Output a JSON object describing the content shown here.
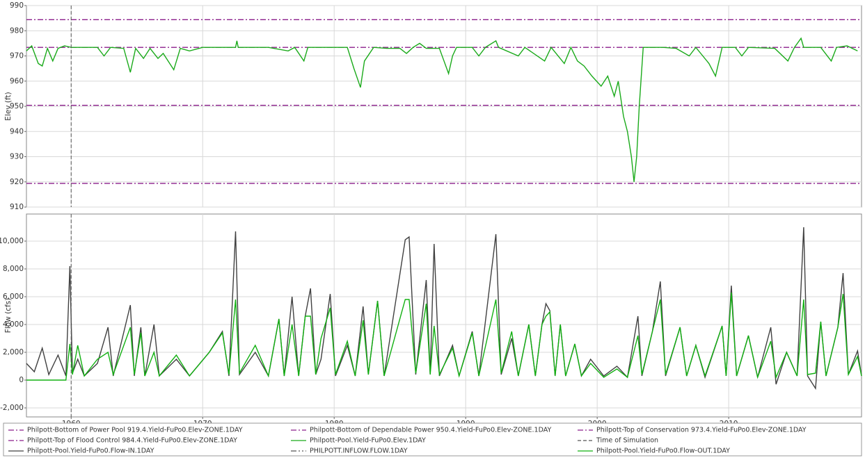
{
  "chart_data": [
    {
      "type": "line",
      "y_label": "Elev (ft)",
      "ylim": [
        910,
        990
      ],
      "yticks": [
        910,
        920,
        930,
        940,
        950,
        960,
        970,
        980,
        990
      ],
      "xlim": [
        1956.6,
        2020.1
      ],
      "xticks": [
        1960,
        1970,
        1980,
        1990,
        2000,
        2010
      ],
      "grid": true,
      "x": [
        1956.6,
        1957,
        1957.5,
        1957.8,
        1958.2,
        1958.6,
        1959,
        1959.5,
        1960,
        1961,
        1962,
        1962.5,
        1963,
        1964,
        1964.5,
        1964.9,
        1965.5,
        1966,
        1966.6,
        1967,
        1967.8,
        1968.3,
        1969,
        1970,
        1972.5,
        1972.6,
        1972.7,
        1975,
        1976.5,
        1977,
        1977.7,
        1978,
        1980,
        1981,
        1981.5,
        1982,
        1982.3,
        1983,
        1984,
        1985,
        1985.5,
        1986,
        1986.5,
        1987,
        1988,
        1988.7,
        1989,
        1989.3,
        1990.5,
        1991,
        1991.5,
        1992.3,
        1992.5,
        1994,
        1994.5,
        1996,
        1996.5,
        1997.5,
        1998,
        1998.5,
        1999,
        1999.6,
        2000.3,
        2000.8,
        2001.3,
        2001.6,
        2002,
        2002.3,
        2002.6,
        2002.8,
        2003,
        2003.2,
        2003.5,
        2005,
        2006,
        2007,
        2007.5,
        2008.5,
        2009,
        2009.5,
        2010.5,
        2011,
        2011.5,
        2013.5,
        2014.5,
        2015,
        2015.5,
        2015.7,
        2017,
        2017.8,
        2018.2,
        2019,
        2019.8
      ],
      "series": [
        {
          "name": "Philpott-Bottom of Power Pool 919.4.Yield-FuPo0.Elev-ZONE.1DAY",
          "color": "#8b1e8b",
          "style": "dash-dot",
          "value": 919.4
        },
        {
          "name": "Philpott-Bottom of Dependable Power 950.4.Yield-FuPo0.Elev-ZONE.1DAY",
          "color": "#8b1e8b",
          "style": "dash-dot",
          "value": 950.4
        },
        {
          "name": "Philpott-Top of Conservation 973.4.Yield-FuPo0.Elev-ZONE.1DAY",
          "color": "#8b1e8b",
          "style": "dash-dot",
          "value": 973.4
        },
        {
          "name": "Philpott-Top of Flood Control 984.4.Yield-FuPo0.Elev-ZONE.1DAY",
          "color": "#8b1e8b",
          "style": "dash-dot",
          "value": 984.4
        },
        {
          "name": "Philpott-Pool.Yield-FuPo0.Elev.1DAY",
          "color": "#1aaa1a",
          "style": "solid",
          "values": [
            972,
            974,
            967,
            966,
            973,
            968,
            973,
            974,
            973.4,
            973.4,
            973.4,
            970,
            973.4,
            973,
            963.5,
            973,
            969,
            973,
            969,
            971,
            964.5,
            973,
            972,
            973.4,
            973.4,
            976,
            973.4,
            973.4,
            972,
            973.4,
            968,
            973.4,
            973.4,
            973.4,
            965,
            957.5,
            968,
            973.4,
            973,
            973,
            971,
            973.4,
            975,
            973,
            973,
            963,
            970,
            973.4,
            973.4,
            970,
            973.4,
            976,
            973.4,
            970,
            973.4,
            968,
            973.4,
            967,
            973.4,
            968,
            966,
            962,
            958,
            962,
            954,
            960,
            946,
            940,
            930,
            920,
            930,
            950,
            973.4,
            973.4,
            973,
            970,
            973.4,
            967,
            962,
            973.4,
            973.4,
            970,
            973.4,
            973,
            968,
            973.4,
            977,
            973.4,
            973.4,
            968,
            973.4,
            974,
            972
          ]
        },
        {
          "name": "Time of Simulation",
          "color": "#555555",
          "style": "dash",
          "x_value": 1960
        }
      ]
    },
    {
      "type": "line",
      "y_label": "Flow (cfs)",
      "ylim": [
        -2650,
        11950
      ],
      "yticks": [
        {
          "value": -2000,
          "label": "-2,000"
        },
        0,
        {
          "value": 2000,
          "label": "2,000"
        },
        {
          "value": 4000,
          "label": "4,000"
        },
        {
          "value": 6000,
          "label": "6,000"
        },
        {
          "value": 8000,
          "label": "8,000"
        },
        {
          "value": 10000,
          "label": "10,000"
        }
      ],
      "xlim": [
        1956.6,
        2020.1
      ],
      "xticks": [
        1960,
        1970,
        1980,
        1990,
        2000,
        2010
      ],
      "grid": true,
      "x": [
        1956.6,
        1957.2,
        1957.8,
        1958.3,
        1959,
        1959.6,
        1959.9,
        1960.1,
        1960.5,
        1961,
        1962,
        1962.8,
        1963.2,
        1964.5,
        1964.8,
        1965.3,
        1965.6,
        1966.3,
        1966.7,
        1968,
        1969,
        1970.5,
        1971.5,
        1972,
        1972.5,
        1972.8,
        1974,
        1975,
        1975.8,
        1976.2,
        1976.8,
        1977.3,
        1977.8,
        1978.2,
        1978.6,
        1979,
        1979.7,
        1980.1,
        1981,
        1981.6,
        1982.2,
        1982.6,
        1983.3,
        1983.8,
        1985.4,
        1985.7,
        1986.2,
        1987,
        1987.3,
        1987.6,
        1988,
        1989,
        1989.5,
        1990.5,
        1991,
        1992.3,
        1992.7,
        1993.5,
        1994,
        1994.8,
        1995.3,
        1995.8,
        1996.1,
        1996.4,
        1996.8,
        1997.2,
        1997.6,
        1998.3,
        1998.8,
        1999.5,
        2000.5,
        2001.5,
        2002.3,
        2003.1,
        2003.4,
        2004.2,
        2004.8,
        2005.2,
        2006.3,
        2006.8,
        2007.5,
        2008.2,
        2009.5,
        2009.8,
        2010.2,
        2010.6,
        2011.5,
        2012.2,
        2013.2,
        2013.6,
        2014.4,
        2015.2,
        2015.7,
        2016,
        2016.6,
        2017,
        2017.4,
        2018.3,
        2018.7,
        2019.1,
        2019.8,
        2020.1
      ],
      "series": [
        {
          "name": "Philpott-Pool.Yield-FuPo0.Flow-IN.1DAY",
          "color": "#404040",
          "style": "solid",
          "values": [
            1200,
            600,
            2300,
            400,
            1800,
            300,
            8200,
            500,
            1500,
            300,
            1200,
            3800,
            300,
            5400,
            300,
            3800,
            300,
            4000,
            300,
            1500,
            300,
            2000,
            3500,
            300,
            10700,
            400,
            2000,
            300,
            4400,
            300,
            6000,
            300,
            4600,
            6600,
            400,
            1500,
            6200,
            300,
            2500,
            300,
            5300,
            400,
            5700,
            300,
            10100,
            10300,
            400,
            7200,
            400,
            9800,
            300,
            2500,
            300,
            3500,
            300,
            10500,
            400,
            3000,
            300,
            4000,
            300,
            4000,
            5500,
            5000,
            300,
            4000,
            300,
            2600,
            300,
            1500,
            300,
            1000,
            200,
            4600,
            300,
            3500,
            7100,
            300,
            3800,
            300,
            2500,
            200,
            3900,
            300,
            6800,
            300,
            3200,
            200,
            3800,
            -300,
            2000,
            300,
            11000,
            300,
            -600,
            4200,
            300,
            3800,
            7700,
            400,
            2100,
            300
          ]
        },
        {
          "name": "PHILPOTT.INFLOW.FLOW.1DAY",
          "color": "#555555",
          "style": "dash-dot-dot"
        },
        {
          "name": "Philpott-Pool.Yield-FuPo0.Flow-OUT.1DAY",
          "color": "#12b012",
          "style": "solid",
          "values": [
            0,
            0,
            0,
            0,
            0,
            0,
            2600,
            400,
            2500,
            300,
            1500,
            2000,
            400,
            3800,
            400,
            3400,
            300,
            2000,
            300,
            1800,
            300,
            2000,
            3400,
            400,
            5800,
            500,
            2500,
            300,
            4400,
            300,
            4000,
            300,
            4600,
            4600,
            400,
            3000,
            5200,
            400,
            2800,
            300,
            4300,
            400,
            5700,
            300,
            5800,
            5800,
            500,
            5500,
            400,
            3900,
            400,
            2300,
            300,
            3400,
            300,
            5800,
            500,
            3500,
            300,
            4000,
            300,
            4000,
            4600,
            4900,
            300,
            4000,
            300,
            2600,
            300,
            1200,
            200,
            800,
            200,
            3200,
            400,
            3500,
            5800,
            400,
            3800,
            300,
            2500,
            300,
            3900,
            300,
            6300,
            300,
            3200,
            200,
            2800,
            200,
            2000,
            300,
            5800,
            400,
            500,
            4200,
            300,
            3800,
            6200,
            400,
            1700,
            300
          ]
        }
      ]
    }
  ]
}
